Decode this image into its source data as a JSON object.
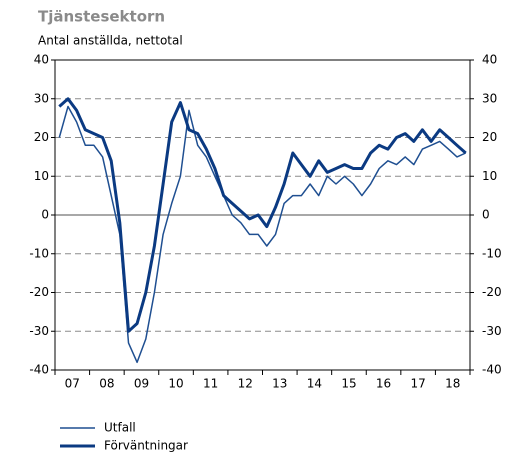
{
  "chart_data": {
    "type": "line",
    "title": "Tjänstesektorn",
    "subtitle": "Antal anställda, nettotal",
    "x": [
      2007.125,
      2007.375,
      2007.625,
      2007.875,
      2008.125,
      2008.375,
      2008.625,
      2008.875,
      2009.125,
      2009.375,
      2009.625,
      2009.875,
      2010.125,
      2010.375,
      2010.625,
      2010.875,
      2011.125,
      2011.375,
      2011.625,
      2011.875,
      2012.125,
      2012.375,
      2012.625,
      2012.875,
      2013.125,
      2013.375,
      2013.625,
      2013.875,
      2014.125,
      2014.375,
      2014.625,
      2014.875,
      2015.125,
      2015.375,
      2015.625,
      2015.875,
      2016.125,
      2016.375,
      2016.625,
      2016.875,
      2017.125,
      2017.375,
      2017.625,
      2017.875,
      2018.125,
      2018.375,
      2018.625,
      2018.875
    ],
    "series": [
      {
        "name": "Utfall",
        "color": "#1f4f91",
        "width": 1.5,
        "values": [
          20,
          28,
          24,
          18,
          18,
          15,
          5,
          -5,
          -33,
          -38,
          -32,
          -20,
          -5,
          3,
          10,
          27,
          18,
          15,
          10,
          5,
          0,
          -2,
          -5,
          -5,
          -8,
          -5,
          3,
          5,
          5,
          8,
          5,
          10,
          8,
          10,
          8,
          5,
          8,
          12,
          14,
          13,
          15,
          13,
          17,
          18,
          19,
          17,
          15,
          16
        ]
      },
      {
        "name": "Förväntningar",
        "color": "#0b3a82",
        "width": 3,
        "values": [
          28,
          30,
          27,
          22,
          21,
          20,
          14,
          -2,
          -30,
          -28,
          -20,
          -8,
          8,
          24,
          29,
          22,
          21,
          17,
          12,
          5,
          3,
          1,
          -1,
          0,
          -3,
          2,
          8,
          16,
          13,
          10,
          14,
          11,
          12,
          13,
          12,
          12,
          16,
          18,
          17,
          20,
          21,
          19,
          22,
          19,
          22,
          20,
          18,
          16
        ]
      }
    ],
    "xlim": [
      2007,
      2019
    ],
    "xticks": [
      2007,
      2008,
      2009,
      2010,
      2011,
      2012,
      2013,
      2014,
      2015,
      2016,
      2017,
      2018,
      2019
    ],
    "year_labels": [
      "07",
      "08",
      "09",
      "10",
      "11",
      "12",
      "13",
      "14",
      "15",
      "16",
      "17",
      "18"
    ],
    "ylim": [
      -40,
      40
    ],
    "yticks": [
      -40,
      -30,
      -20,
      -10,
      0,
      10,
      20,
      30,
      40
    ],
    "grid": true
  }
}
